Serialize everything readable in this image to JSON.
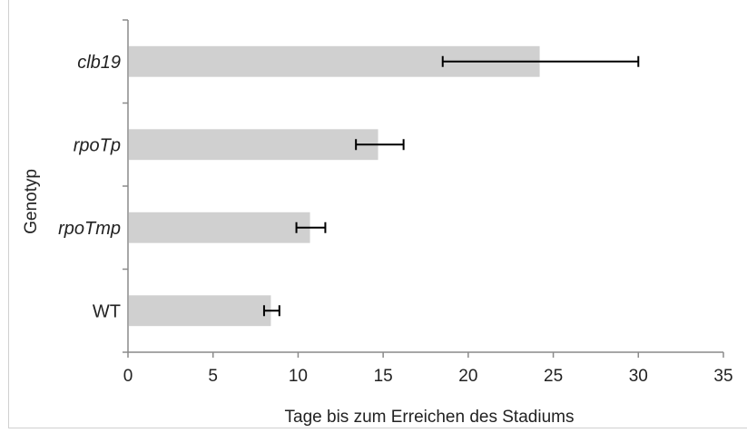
{
  "chart_data": {
    "type": "bar",
    "orientation": "horizontal",
    "categories": [
      "clb19",
      "rpoTp",
      "rpoTmp",
      "WT"
    ],
    "category_style": "italic except WT",
    "values": [
      24.2,
      14.7,
      10.7,
      8.4
    ],
    "errors": [
      [
        18.5,
        30.0
      ],
      [
        13.4,
        16.2
      ],
      [
        9.9,
        11.6
      ],
      [
        8.0,
        8.9
      ]
    ],
    "xlabel": "Tage bis zum Erreichen des Stadiums",
    "ylabel": "Genotyp",
    "xlim": [
      0,
      35
    ],
    "xticks": [
      "0",
      "5",
      "10",
      "15",
      "20",
      "25",
      "30",
      "35"
    ],
    "grid": false,
    "bar_color": "#d0d0d0",
    "errorbar_color": "#000000"
  }
}
